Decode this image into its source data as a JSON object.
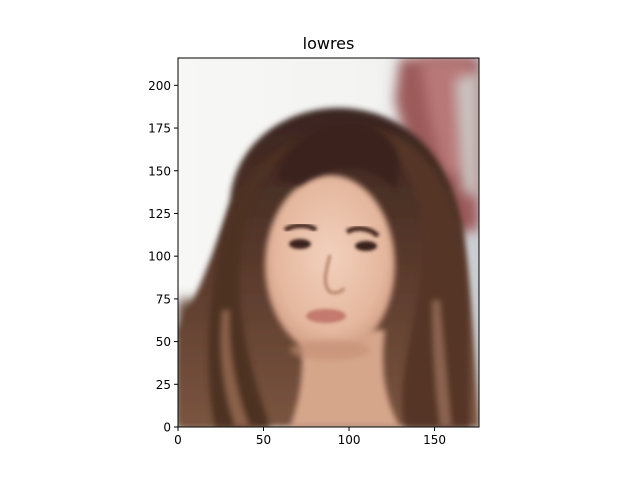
{
  "title": "lowres",
  "image_description": "blurry low-resolution portrait of a woman with long brown hair",
  "xaxis": {
    "ticks": [
      "0",
      "50",
      "100",
      "150"
    ],
    "tick_values": [
      0,
      50,
      100,
      150
    ],
    "range": [
      0,
      176
    ]
  },
  "yaxis": {
    "ticks": [
      "0",
      "25",
      "50",
      "75",
      "100",
      "125",
      "150",
      "175",
      "200"
    ],
    "tick_values": [
      0,
      25,
      50,
      75,
      100,
      125,
      150,
      175,
      200
    ],
    "range": [
      0,
      216
    ]
  }
}
